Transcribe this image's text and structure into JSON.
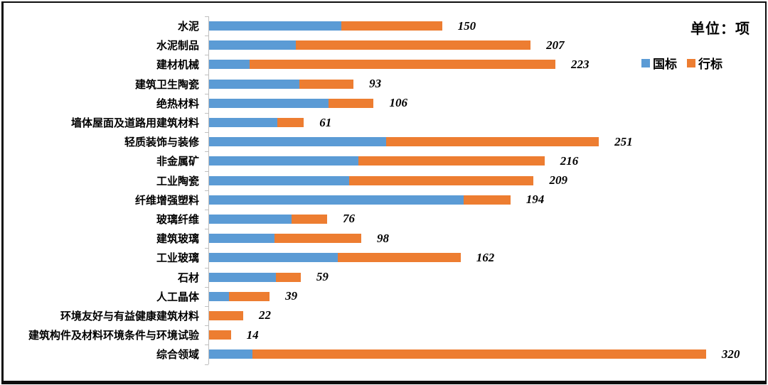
{
  "unit_label": "单位：项",
  "legend": {
    "items": [
      {
        "label": "国标",
        "color": "#5B9BD5"
      },
      {
        "label": "行标",
        "color": "#ED7D31"
      }
    ]
  },
  "colors": {
    "guobiao_blue": "#5B9BD5",
    "hangbiao_orange": "#ED7D31",
    "axis_gray": "#BFBFBF",
    "frame_black": "#0E0E0E"
  },
  "chart_data": {
    "type": "bar",
    "orientation": "horizontal",
    "stacked": true,
    "title": "",
    "unit": "单位：项",
    "legend_position": "top-right",
    "grid": false,
    "value_labels": "totals at bar end, bold italic",
    "xlim": [
      0,
      345
    ],
    "categories": [
      "水泥",
      "水泥制品",
      "建材机械",
      "建筑卫生陶瓷",
      "绝热材料",
      "墙体屋面及道路用建筑材料",
      "轻质装饰与装修",
      "非金属矿",
      "工业陶瓷",
      "纤维增强塑料",
      "玻璃纤维",
      "建筑玻璃",
      "工业玻璃",
      "石材",
      "人工晶体",
      "环境友好与有益健康建筑材料",
      "建筑构件及材料环境条件与环境试验",
      "综合领域"
    ],
    "series": [
      {
        "name": "国标",
        "color": "#5B9BD5",
        "values": [
          85,
          56,
          26,
          58,
          77,
          44,
          114,
          96,
          90,
          164,
          53,
          42,
          83,
          43,
          13,
          0,
          0,
          28
        ]
      },
      {
        "name": "行标",
        "color": "#ED7D31",
        "values": [
          65,
          151,
          197,
          35,
          29,
          17,
          137,
          120,
          119,
          30,
          23,
          56,
          79,
          16,
          26,
          22,
          14,
          292
        ]
      }
    ],
    "totals": [
      150,
      207,
      223,
      93,
      106,
      61,
      251,
      216,
      209,
      194,
      76,
      98,
      162,
      59,
      39,
      22,
      14,
      320
    ]
  }
}
